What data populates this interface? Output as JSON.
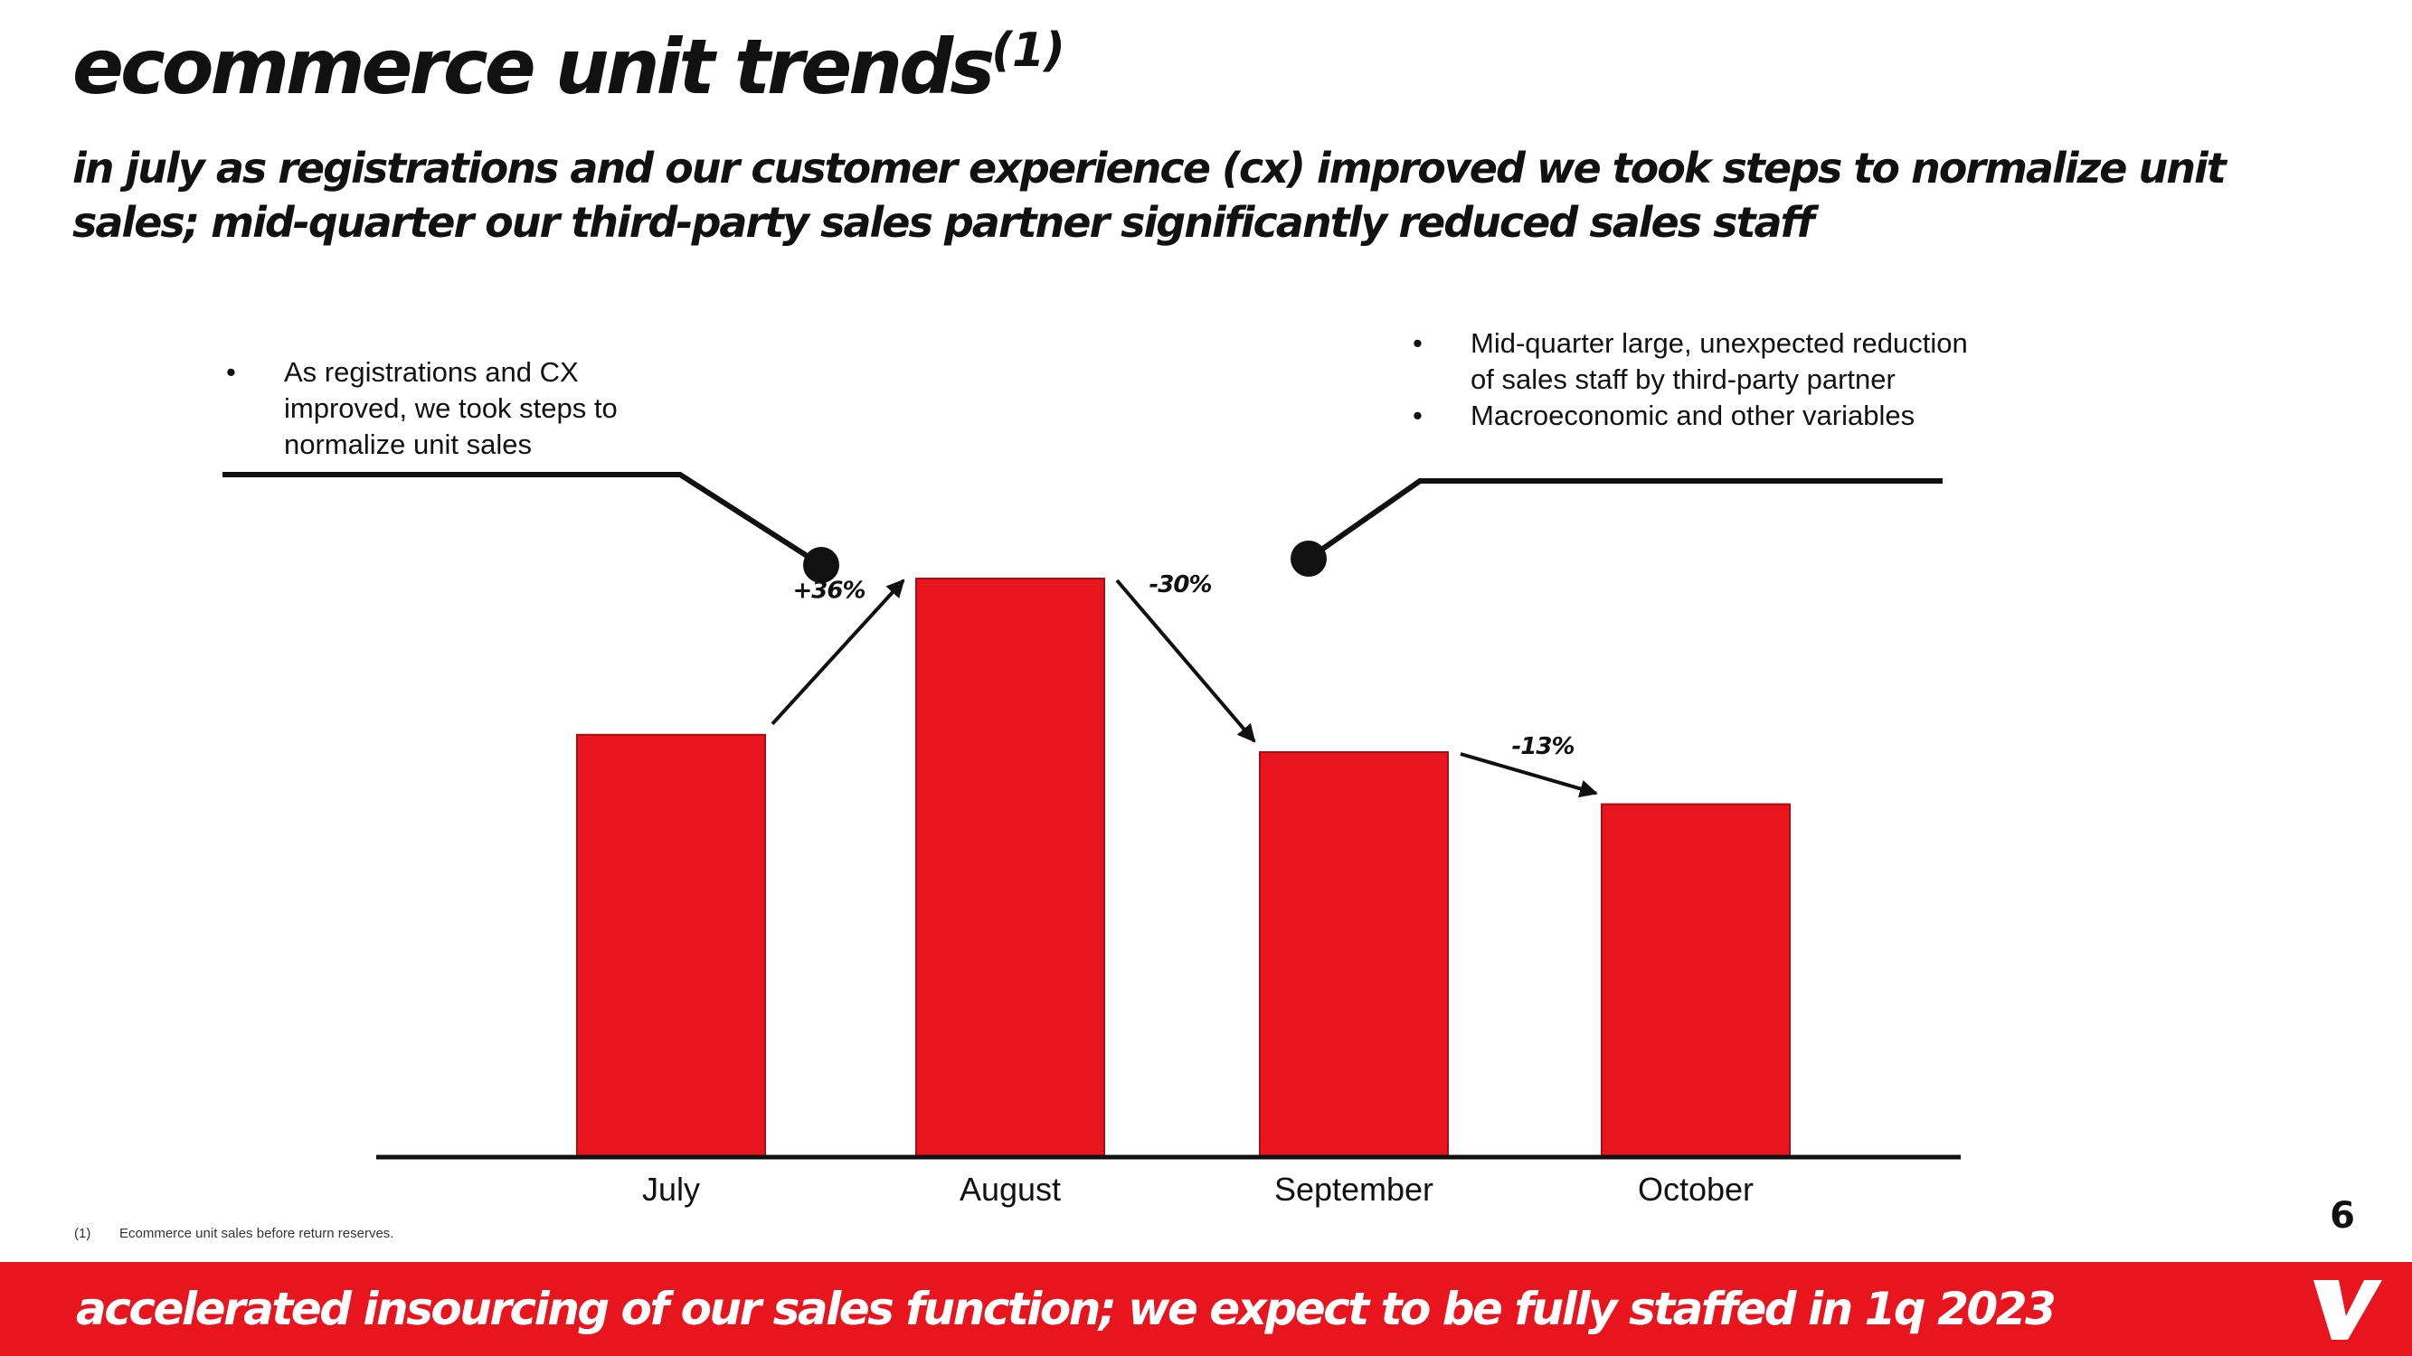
{
  "slide": {
    "title": "ecommerce unit trends",
    "title_footnote_marker": "(1)",
    "subtitle": "in july as registrations and our customer experience (cx) improved we took steps to normalize unit sales; mid-quarter our third-party sales partner significantly reduced sales staff",
    "page_number": "6"
  },
  "callouts": {
    "left": {
      "bullet": "•",
      "items": [
        "As registrations and CX improved, we took steps to normalize unit sales"
      ]
    },
    "right": {
      "bullet": "•",
      "items": [
        "Mid-quarter large, unexpected reduction of sales staff by third-party partner",
        "Macroeconomic and other variables"
      ]
    }
  },
  "footnote": {
    "marker": "(1)",
    "text": "Ecommerce unit sales before return reserves."
  },
  "banner": {
    "text": "accelerated insourcing of our sales function; we expect to be fully staffed in 1q 2023"
  },
  "logo": {
    "icon": "brand-v-logo-icon"
  },
  "colors": {
    "accent_red": "#e8151f",
    "bar_red": "#e8141e",
    "text": "#111111",
    "banner_text": "#ffffff"
  },
  "chart_data": {
    "type": "bar",
    "categories": [
      "July",
      "August",
      "September",
      "October"
    ],
    "values": [
      73,
      100,
      70,
      61
    ],
    "value_note": "relative units (unlabeled axis; August = 100)",
    "changes": [
      {
        "from": "July",
        "to": "August",
        "label": "+36%"
      },
      {
        "from": "August",
        "to": "September",
        "label": "-30%"
      },
      {
        "from": "September",
        "to": "October",
        "label": "-13%"
      }
    ],
    "ylim": [
      0,
      100
    ],
    "grid": false,
    "legend": "none",
    "xlabel": "",
    "ylabel": ""
  }
}
